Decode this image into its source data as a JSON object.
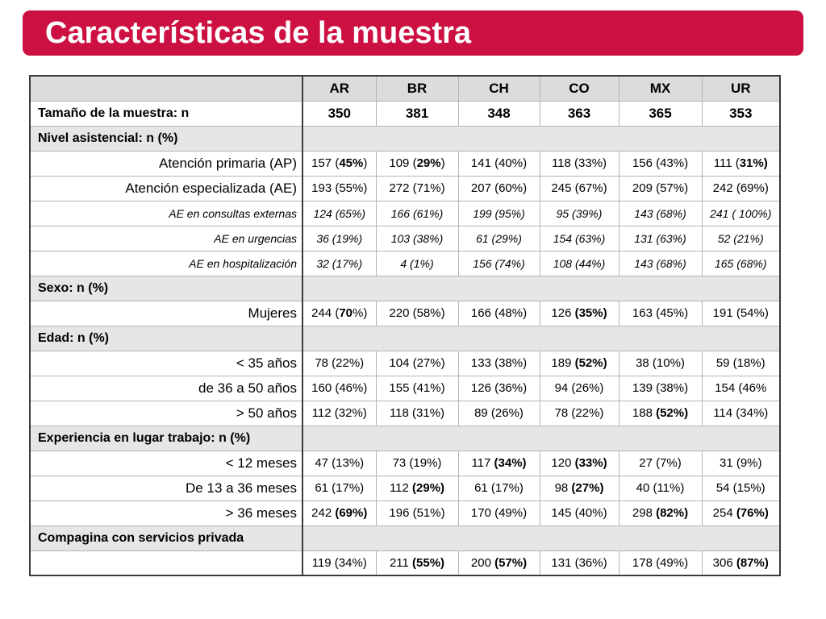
{
  "title": "Características de la muestra",
  "colors": {
    "title_bar": "#cc1142",
    "header_fill": "#dcdcdc",
    "section_fill": "#e6e6e6"
  },
  "table": {
    "columns": [
      "AR",
      "BR",
      "CH",
      "CO",
      "MX",
      "UR"
    ],
    "rows": [
      {
        "kind": "value",
        "label": "Tamaño de la muestra: n",
        "cells": [
          {
            "a": "350"
          },
          {
            "a": "381"
          },
          {
            "a": "348"
          },
          {
            "a": "363"
          },
          {
            "a": "365"
          },
          {
            "a": "353"
          }
        ]
      },
      {
        "kind": "section",
        "label": "Nivel asistencial: n (%)"
      },
      {
        "kind": "data",
        "label": "Atención primaria (AP)",
        "cells": [
          {
            "a": "157 (",
            "b": "45%",
            "c": ")"
          },
          {
            "a": "109 (",
            "b": "29%",
            "c": ")"
          },
          {
            "a": "141 (40%)"
          },
          {
            "a": "118 (33%)"
          },
          {
            "a": "156 (43%)"
          },
          {
            "a": "111 (",
            "b": "31%)"
          }
        ]
      },
      {
        "kind": "data",
        "label": "Atención especializada (AE)",
        "cells": [
          {
            "a": "193 (55%)"
          },
          {
            "a": "272 (71%)"
          },
          {
            "a": "207 (60%)"
          },
          {
            "a": "245 (67%)"
          },
          {
            "a": "209 (57%)"
          },
          {
            "a": "242 (69%)"
          }
        ]
      },
      {
        "kind": "sub",
        "label": "AE en consultas externas",
        "cells": [
          {
            "a": "124 (65%)"
          },
          {
            "a": "166 (61%)"
          },
          {
            "a": "199 (95%)"
          },
          {
            "a": "95 (39%)"
          },
          {
            "a": "143 (68%)"
          },
          {
            "a": "241 ( 100%)"
          }
        ]
      },
      {
        "kind": "sub",
        "label": "AE en urgencias",
        "cells": [
          {
            "a": "36 (19%)"
          },
          {
            "a": "103 (38%)"
          },
          {
            "a": "61 (29%)"
          },
          {
            "a": "154 (63%)"
          },
          {
            "a": "131 (63%)"
          },
          {
            "a": "52 (21%)"
          }
        ]
      },
      {
        "kind": "sub",
        "label": "AE en hospitalización",
        "cells": [
          {
            "a": "32 (17%)"
          },
          {
            "a": "4 (1%)"
          },
          {
            "a": "156 (74%)"
          },
          {
            "a": "108 (44%)"
          },
          {
            "a": "143 (68%)"
          },
          {
            "a": "165 (68%)"
          }
        ]
      },
      {
        "kind": "section",
        "label": "Sexo: n (%)"
      },
      {
        "kind": "data",
        "label": "Mujeres",
        "cells": [
          {
            "a": "244 (",
            "b": "70",
            "c": "%)"
          },
          {
            "a": "220 (58%)"
          },
          {
            "a": "166 (48%)"
          },
          {
            "a": "126 ",
            "b": "(35%)"
          },
          {
            "a": "163 (45%)"
          },
          {
            "a": "191 (54%)"
          }
        ]
      },
      {
        "kind": "section",
        "label": "Edad: n (%)"
      },
      {
        "kind": "data",
        "label": "< 35 años",
        "cells": [
          {
            "a": "78 (22%)"
          },
          {
            "a": "104 (27%)"
          },
          {
            "a": "133 (38%)"
          },
          {
            "a": "189 ",
            "b": "(52%)"
          },
          {
            "a": "38 (10%)"
          },
          {
            "a": "59 (18%)"
          }
        ]
      },
      {
        "kind": "data",
        "label": "de 36 a 50 años",
        "cells": [
          {
            "a": "160 (46%)"
          },
          {
            "a": "155 (41%)"
          },
          {
            "a": "126 (36%)"
          },
          {
            "a": "94 (26%)"
          },
          {
            "a": "139 (38%)"
          },
          {
            "a": "154 (46%"
          }
        ]
      },
      {
        "kind": "data",
        "label": "> 50 años",
        "cells": [
          {
            "a": "112 (32%)"
          },
          {
            "a": "118 (31%)"
          },
          {
            "a": "89 (26%)"
          },
          {
            "a": "78 (22%)"
          },
          {
            "a": "188 ",
            "b": "(52%)"
          },
          {
            "a": "114 (34%)"
          }
        ]
      },
      {
        "kind": "section",
        "label": "Experiencia en lugar trabajo: n (%)"
      },
      {
        "kind": "data",
        "label": "< 12 meses",
        "cells": [
          {
            "a": "47 (13%)"
          },
          {
            "a": "73 (19%)"
          },
          {
            "a": "117 ",
            "b": "(34%)"
          },
          {
            "a": "120 ",
            "b": "(33%)"
          },
          {
            "a": "27 (7%)"
          },
          {
            "a": "31 (9%)"
          }
        ]
      },
      {
        "kind": "data",
        "label": "De 13 a 36 meses",
        "cells": [
          {
            "a": "61 (17%)"
          },
          {
            "a": "112 ",
            "b": "(29%)"
          },
          {
            "a": "61 (17%)"
          },
          {
            "a": "98 ",
            "b": "(27%)"
          },
          {
            "a": "40 (11%)"
          },
          {
            "a": "54 (15%)"
          }
        ]
      },
      {
        "kind": "data",
        "label": "> 36 meses",
        "cells": [
          {
            "a": "242 ",
            "b": "(69%)"
          },
          {
            "a": "196 (51%)"
          },
          {
            "a": "170 (49%)"
          },
          {
            "a": "145 (40%)"
          },
          {
            "a": "298 ",
            "b": "(82%)"
          },
          {
            "a": "254 ",
            "b": "(76%)"
          }
        ]
      },
      {
        "kind": "section",
        "label": "Compagina con servicios privada"
      },
      {
        "kind": "data",
        "label": "",
        "cells": [
          {
            "a": "119 (34%)"
          },
          {
            "a": "211 ",
            "b": "(55%)"
          },
          {
            "a": "200 ",
            "b": "(57%)"
          },
          {
            "a": "131 (36%)"
          },
          {
            "a": "178 (49%)"
          },
          {
            "a": "306 ",
            "b": "(87%)"
          }
        ]
      }
    ]
  }
}
